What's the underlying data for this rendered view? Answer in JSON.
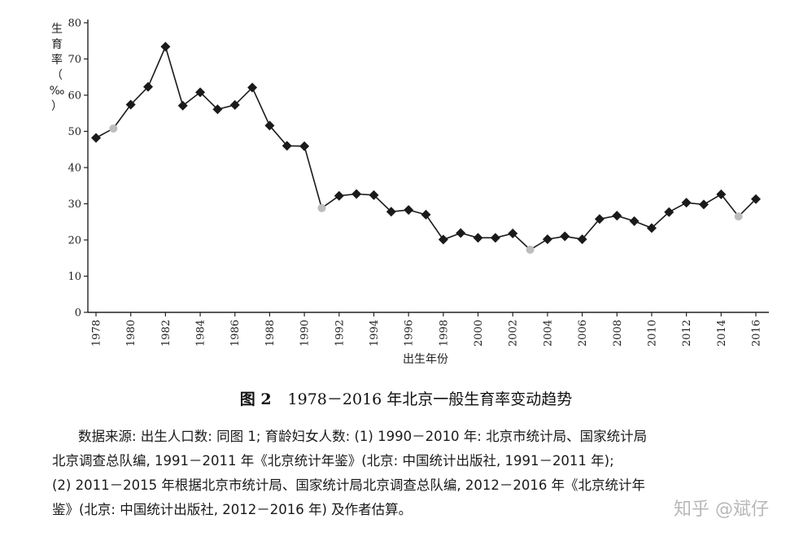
{
  "chart_data": {
    "type": "line",
    "ylabel_chars": [
      "生",
      "育",
      "率",
      "（",
      "‰",
      "）"
    ],
    "xlabel": "出生年份",
    "ylim": [
      0,
      80
    ],
    "yticks": [
      0,
      10,
      20,
      30,
      40,
      50,
      60,
      70,
      80
    ],
    "xticks": [
      1978,
      1980,
      1982,
      1984,
      1986,
      1988,
      1990,
      1992,
      1994,
      1996,
      1998,
      2000,
      2002,
      2004,
      2006,
      2008,
      2010,
      2012,
      2014,
      2016
    ],
    "x": [
      1978,
      1979,
      1980,
      1981,
      1982,
      1983,
      1984,
      1985,
      1986,
      1987,
      1988,
      1989,
      1990,
      1991,
      1992,
      1993,
      1994,
      1995,
      1996,
      1997,
      1998,
      1999,
      2000,
      2001,
      2002,
      2003,
      2004,
      2005,
      2006,
      2007,
      2008,
      2009,
      2010,
      2011,
      2012,
      2013,
      2014,
      2015,
      2016
    ],
    "values": [
      48.2,
      50.8,
      57.4,
      62.3,
      73.4,
      57.1,
      60.8,
      56.1,
      57.3,
      62.1,
      51.6,
      46.0,
      45.9,
      28.8,
      32.2,
      32.7,
      32.4,
      27.8,
      28.3,
      27.0,
      20.1,
      21.9,
      20.6,
      20.6,
      21.8,
      17.3,
      20.2,
      21.0,
      20.2,
      25.8,
      26.7,
      25.2,
      23.3,
      27.7,
      30.3,
      29.8,
      32.6,
      26.5,
      31.3
    ],
    "estimated_years": [
      1979,
      1991,
      2003,
      2015
    ],
    "series_color": "#1a1a1a",
    "estimated_color": "#bdbdbd",
    "grid": false
  },
  "caption": {
    "figure_number": "图 2",
    "title": "1978－2016 年北京一般生育率变动趋势"
  },
  "source_lines": [
    "数据来源: 出生人口数: 同图 1; 育龄妇女人数: (1) 1990－2010 年: 北京市统计局、国家统计局",
    "北京调查总队编, 1991－2011 年《北京统计年鉴》(北京: 中国统计出版社, 1991－2011 年);",
    "(2) 2011－2015 年根据北京市统计局、国家统计局北京调查总队编, 2012－2016 年《北京统计年",
    "鉴》(北京: 中国统计出版社, 2012－2016 年) 及作者估算。"
  ],
  "watermark": "知乎 @斌仔"
}
